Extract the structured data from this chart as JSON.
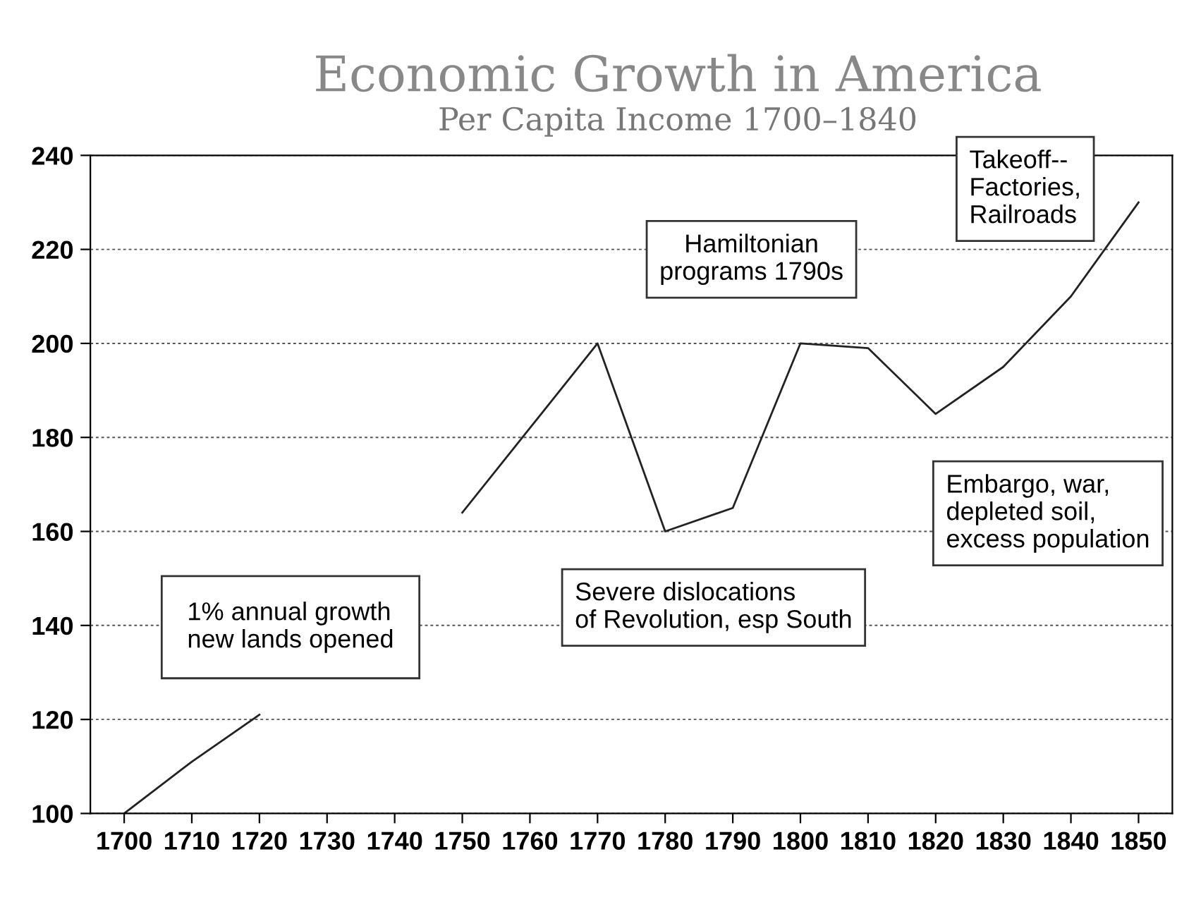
{
  "chart_data": {
    "type": "line",
    "title": "Economic Growth in America",
    "subtitle": "Per Capita Income 1700–1840",
    "x": [
      1700,
      1710,
      1720,
      1730,
      1740,
      1750,
      1760,
      1770,
      1780,
      1790,
      1800,
      1810,
      1820,
      1830,
      1840,
      1850
    ],
    "series": [
      {
        "color": "#222222",
        "values": [
          100,
          111,
          121,
          null,
          null,
          164,
          182,
          200,
          160,
          165,
          200,
          199,
          185,
          195,
          210,
          230
        ]
      }
    ],
    "xlim": [
      1695,
      1855
    ],
    "xticks": [
      1700,
      1710,
      1720,
      1730,
      1740,
      1750,
      1760,
      1770,
      1780,
      1790,
      1800,
      1810,
      1820,
      1830,
      1840,
      1850
    ],
    "ylim": [
      100,
      240
    ],
    "yticks": [
      100,
      120,
      140,
      160,
      180,
      200,
      220,
      240
    ],
    "grid": "y",
    "legend": false,
    "marker": "none",
    "line_style": "solid",
    "annotations": [
      "1% annual growth\nnew lands opened",
      "Severe dislocations\nof Revolution, esp South",
      "Hamiltonian\nprograms 1790s",
      "Takeoff--\nFactories,\nRailroads",
      "Embargo, war,\ndepleted soil,\nexcess population"
    ]
  }
}
